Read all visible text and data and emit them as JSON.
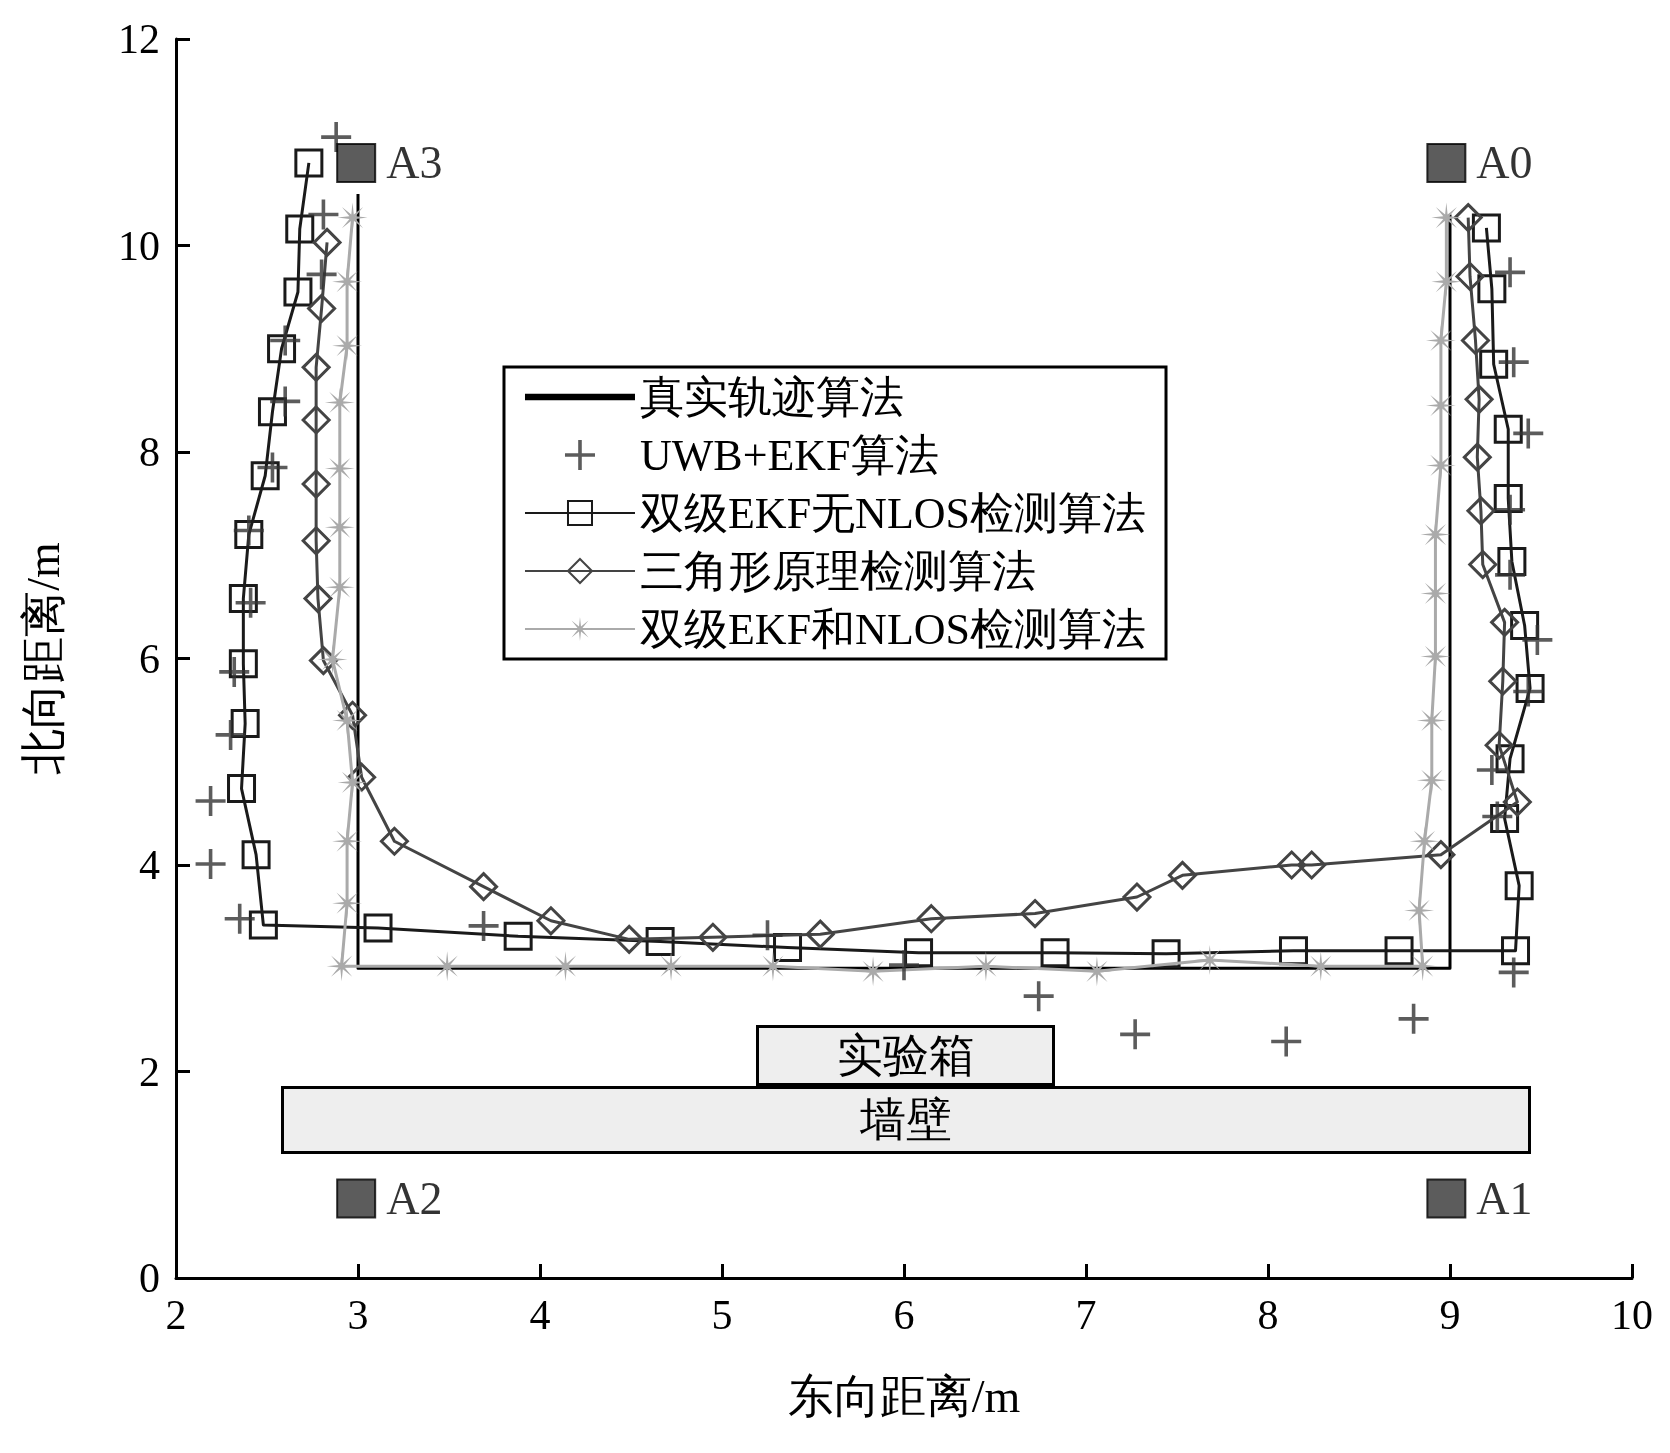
{
  "chart_data": {
    "type": "line",
    "xlabel": "东向距离/m",
    "ylabel": "北向距离/m",
    "xlim": [
      2,
      10
    ],
    "xticks": [
      2,
      3,
      4,
      5,
      6,
      7,
      8,
      9,
      10
    ],
    "ylim": [
      0,
      12
    ],
    "yticks": [
      0,
      2,
      4,
      6,
      8,
      10,
      12
    ],
    "grid": false,
    "legend": "center",
    "series": [
      {
        "name": "真实轨迹算法",
        "marker": "none",
        "color": "#000000",
        "x": [
          3,
          3,
          9,
          9
        ],
        "values": [
          10.5,
          3,
          3,
          10.3
        ]
      },
      {
        "name": "UWB+EKF算法",
        "type": "scatter",
        "marker": "cross",
        "color": "#333333",
        "x": [
          2.88,
          2.81,
          2.8,
          2.6,
          2.6,
          2.53,
          2.4,
          2.41,
          2.32,
          2.3,
          2.19,
          2.19,
          2.35,
          3.69,
          5.25,
          6.0,
          6.74,
          7.27,
          8.1,
          8.8,
          9.35,
          9.26,
          9.23,
          9.43,
          9.48,
          9.33,
          9.33,
          9.43,
          9.35,
          9.33
        ],
        "values": [
          11.05,
          10.3,
          9.72,
          9.08,
          8.49,
          7.85,
          7.24,
          6.54,
          5.87,
          5.26,
          4.62,
          4.01,
          3.48,
          3.41,
          3.32,
          3.03,
          2.73,
          2.36,
          2.29,
          2.51,
          2.96,
          4.47,
          4.92,
          5.68,
          6.18,
          6.81,
          7.44,
          8.18,
          8.87,
          9.74
        ]
      },
      {
        "name": "双级EKF无NLOS检测算法",
        "marker": "square",
        "color": "#1a1a1a",
        "x": [
          2.73,
          2.68,
          2.67,
          2.58,
          2.53,
          2.49,
          2.4,
          2.37,
          2.37,
          2.38,
          2.36,
          2.44,
          2.48,
          3.11,
          3.88,
          4.66,
          5.36,
          6.08,
          6.83,
          7.44,
          8.14,
          8.72,
          9.36,
          9.38,
          9.3,
          9.33,
          9.44,
          9.41,
          9.34,
          9.32,
          9.32,
          9.24,
          9.23,
          9.2
        ],
        "values": [
          10.8,
          10.16,
          9.55,
          9.0,
          8.39,
          7.77,
          7.2,
          6.58,
          5.95,
          5.37,
          4.74,
          4.1,
          3.42,
          3.39,
          3.31,
          3.26,
          3.2,
          3.15,
          3.15,
          3.14,
          3.17,
          3.17,
          3.17,
          3.8,
          4.45,
          5.03,
          5.71,
          6.32,
          6.94,
          7.55,
          8.22,
          8.85,
          9.58,
          10.17
        ]
      },
      {
        "name": "三角形原理检测算法",
        "marker": "diamond",
        "color": "#444444",
        "x": [
          2.83,
          2.8,
          2.77,
          2.77,
          2.77,
          2.77,
          2.78,
          2.81,
          2.97,
          3.02,
          3.2,
          3.69,
          4.06,
          4.49,
          4.95,
          5.54,
          6.15,
          6.72,
          7.28,
          7.53,
          8.13,
          8.24,
          8.95,
          9.37,
          9.27,
          9.29,
          9.3,
          9.18,
          9.17,
          9.15,
          9.16,
          9.14,
          9.11,
          9.1
        ],
        "values": [
          10.03,
          9.39,
          8.82,
          8.31,
          7.69,
          7.14,
          6.58,
          5.98,
          5.45,
          4.85,
          4.23,
          3.79,
          3.46,
          3.28,
          3.3,
          3.33,
          3.48,
          3.53,
          3.69,
          3.9,
          4.0,
          4.0,
          4.1,
          4.61,
          5.16,
          5.78,
          6.35,
          6.91,
          7.43,
          7.95,
          8.51,
          9.08,
          9.7,
          10.27
        ]
      },
      {
        "name": "双级EKF和NLOS检测算法",
        "marker": "star",
        "color": "#aaaaaa",
        "x": [
          2.97,
          2.94,
          2.94,
          2.9,
          2.9,
          2.9,
          2.9,
          2.86,
          2.94,
          2.97,
          2.94,
          2.94,
          2.91,
          3.49,
          4.14,
          4.72,
          5.28,
          5.83,
          6.45,
          7.06,
          7.68,
          8.29,
          8.85,
          8.83,
          8.86,
          8.9,
          8.9,
          8.92,
          8.92,
          8.92,
          8.95,
          8.95,
          8.95,
          8.98,
          8.98
        ],
        "values": [
          10.27,
          9.65,
          9.03,
          8.48,
          7.84,
          7.27,
          6.69,
          5.99,
          5.4,
          4.8,
          4.23,
          3.63,
          3.02,
          3.02,
          3.02,
          3.02,
          3.02,
          2.97,
          3.02,
          2.97,
          3.08,
          3.02,
          3.02,
          3.56,
          4.23,
          4.82,
          5.4,
          6.02,
          6.63,
          7.2,
          7.87,
          8.45,
          9.08,
          9.65,
          10.27
        ]
      },
      {
        "type": "scatter",
        "marker": "square",
        "color": "#333333",
        "x": [
          8.98,
          8.98,
          2.99,
          2.99
        ],
        "values": [
          10.8,
          0.77,
          0.77,
          10.8
        ],
        "value_labels": [
          "A0",
          "A1",
          "A2",
          "A3"
        ]
      }
    ],
    "annotations": [
      "实验箱",
      "墙壁"
    ]
  }
}
